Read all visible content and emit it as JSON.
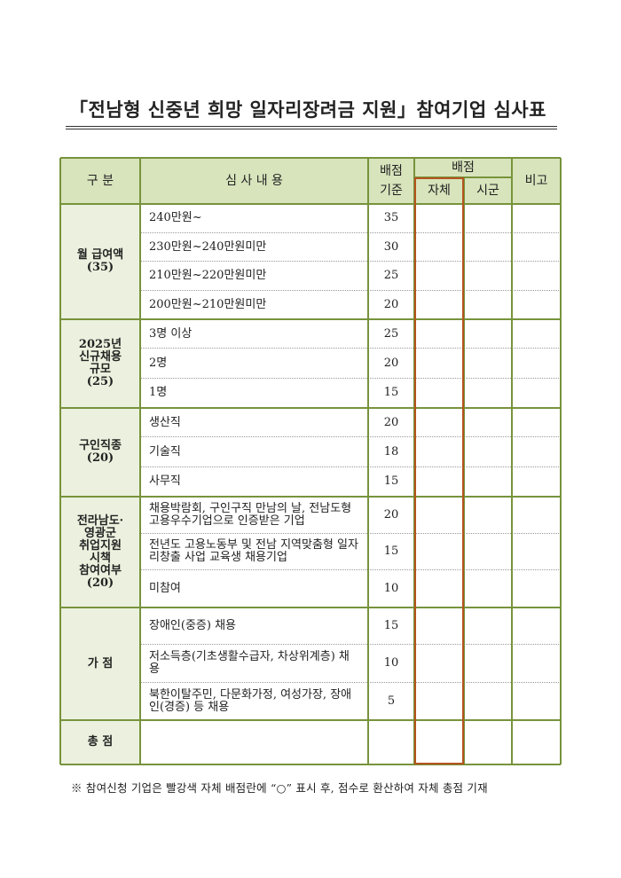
{
  "title": "「전남형 신중년 희망 일자리장려금 지원」참여기업 심사표",
  "header": {
    "category": "구  분",
    "content": "심 사 내 용",
    "standard": "배점 기준",
    "score_group": "배점",
    "self": "자체",
    "county": "시군",
    "remarks": "비고"
  },
  "groups": [
    {
      "label": "월 급여액\n(35)",
      "items": [
        {
          "text": "240만원~",
          "points": "35"
        },
        {
          "text": "230만원~240만원미만",
          "points": "30"
        },
        {
          "text": "210만원~220만원미만",
          "points": "25"
        },
        {
          "text": "200만원~210만원미만",
          "points": "20"
        }
      ]
    },
    {
      "label": "2025년\n신규채용\n규모\n(25)",
      "items": [
        {
          "text": "3명 이상",
          "points": "25"
        },
        {
          "text": "2명",
          "points": "20"
        },
        {
          "text": "1명",
          "points": "15"
        }
      ]
    },
    {
      "label": "구인직종\n(20)",
      "items": [
        {
          "text": "생산직",
          "points": "20"
        },
        {
          "text": "기술직",
          "points": "18"
        },
        {
          "text": "사무직",
          "points": "15"
        }
      ]
    },
    {
      "label": "전라남도·\n영광군\n취업지원\n시책\n참여여부\n(20)",
      "items": [
        {
          "text": "채용박람회, 구인구직 만남의 날, 전남도형 고용우수기업으로 인증받은 기업",
          "points": "20"
        },
        {
          "text": "전년도 고용노동부 및 전남 지역맞춤형 일자리창출 사업 교육생 채용기업",
          "points": "15"
        },
        {
          "text": "미참여",
          "points": "10"
        }
      ]
    },
    {
      "label": "가 점",
      "items": [
        {
          "text": "장애인(중증) 채용",
          "points": "15"
        },
        {
          "text": "저소득층(기초생활수급자, 차상위계층) 채용",
          "points": "10"
        },
        {
          "text": "북한이탈주민, 다문화가정, 여성가장, 장애인(경증) 등 채용",
          "points": "5"
        }
      ]
    }
  ],
  "total_label": "총 점",
  "note": "※ 참여신청 기업은 빨강색 자체 배점란에 “○” 표시 후, 점수로 환산하여 자체 총점 기재",
  "colors": {
    "header_bg": "#d8e4bc",
    "category_bg": "#ebf1de",
    "border": "#77933c",
    "self_box": "#b4541e"
  }
}
